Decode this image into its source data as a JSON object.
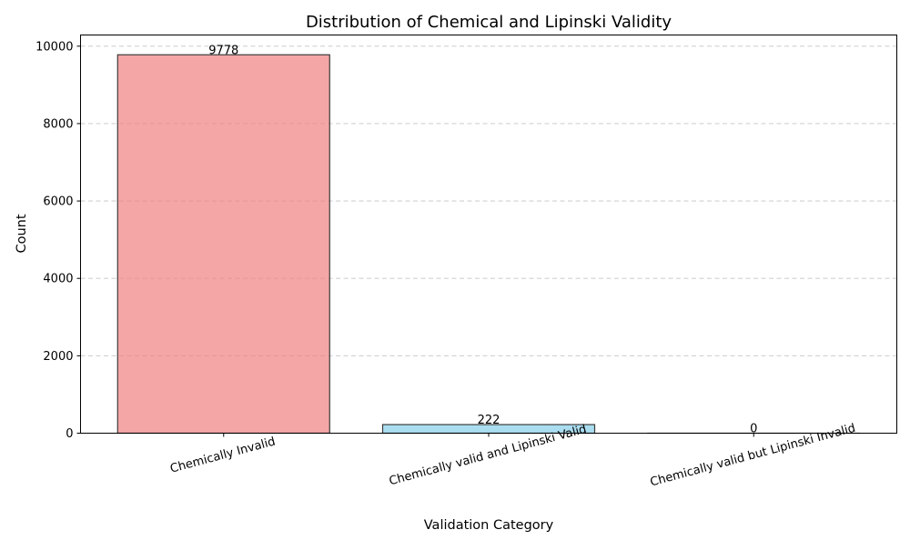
{
  "chart_data": {
    "type": "bar",
    "title": "Distribution of Chemical and Lipinski Validity",
    "xlabel": "Validation Category",
    "ylabel": "Count",
    "categories": [
      "Chemically Invalid",
      "Chemically valid and Lipinski Valid",
      "Chemically valid but Lipinski Invalid"
    ],
    "values": [
      9778,
      222,
      0
    ],
    "data_labels": [
      "9778",
      "222",
      "0"
    ],
    "bar_colors": [
      "#f08080",
      "#87ceeb",
      "#90ee90"
    ],
    "edge_color": "#3a3a3a",
    "ylim": [
      0,
      10289
    ],
    "yticks": [
      0,
      2000,
      4000,
      6000,
      8000,
      10000
    ],
    "ytick_labels": [
      "0",
      "2000",
      "4000",
      "6000",
      "8000",
      "10000"
    ],
    "grid": "y-axis, dashed",
    "xtick_rotation_deg": 15,
    "legend": "none"
  }
}
